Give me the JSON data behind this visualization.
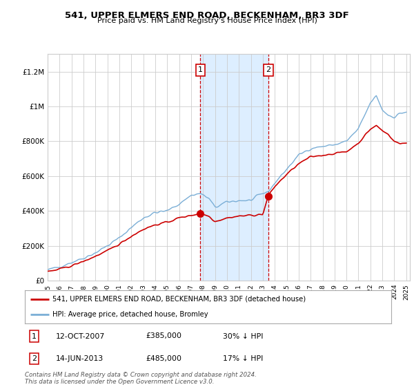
{
  "title": "541, UPPER ELMERS END ROAD, BECKENHAM, BR3 3DF",
  "subtitle": "Price paid vs. HM Land Registry's House Price Index (HPI)",
  "ylim": [
    0,
    1300000
  ],
  "yticks": [
    0,
    200000,
    400000,
    600000,
    800000,
    1000000,
    1200000
  ],
  "ytick_labels": [
    "£0",
    "£200K",
    "£400K",
    "£600K",
    "£800K",
    "£1M",
    "£1.2M"
  ],
  "xmin": 1995,
  "xmax": 2025.3,
  "sale1_date": 2007.78,
  "sale1_price": 385000,
  "sale1_text": "12-OCT-2007",
  "sale1_price_str": "£385,000",
  "sale1_hpi_str": "30% ↓ HPI",
  "sale2_date": 2013.45,
  "sale2_price": 485000,
  "sale2_text": "14-JUN-2013",
  "sale2_price_str": "£485,000",
  "sale2_hpi_str": "17% ↓ HPI",
  "legend_line1": "541, UPPER ELMERS END ROAD, BECKENHAM, BR3 3DF (detached house)",
  "legend_line2": "HPI: Average price, detached house, Bromley",
  "footer": "Contains HM Land Registry data © Crown copyright and database right 2024.\nThis data is licensed under the Open Government Licence v3.0.",
  "red_color": "#cc0000",
  "blue_color": "#7aaed6",
  "shade_color": "#ddeeff",
  "grid_color": "#cccccc",
  "bg_color": "#ffffff"
}
